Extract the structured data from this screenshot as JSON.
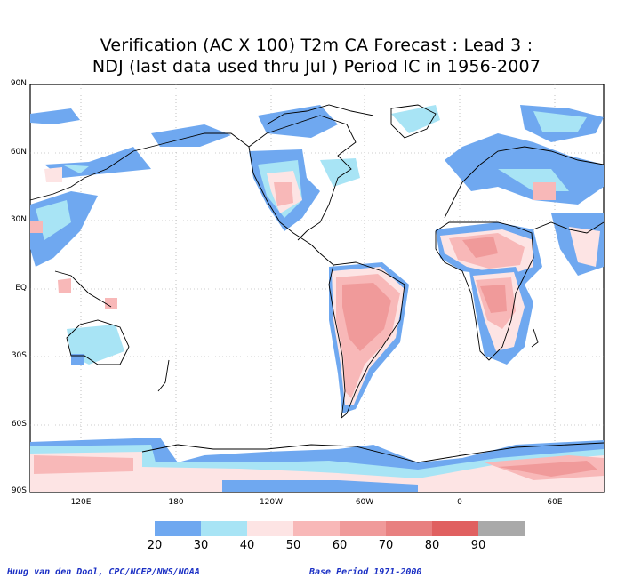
{
  "title": {
    "line1": "Verification (AC X 100) T2m CA Forecast : Lead 3 :",
    "line2": "NDJ (last data used thru Jul ) Period IC in 1956-2007"
  },
  "axes": {
    "lat_labels": [
      "90N",
      "60N",
      "30N",
      "EQ",
      "30S",
      "60S",
      "90S"
    ],
    "lon_labels": [
      "120E",
      "180",
      "120W",
      "60W",
      "0",
      "60E"
    ]
  },
  "colorbar": {
    "colors": [
      "#6fa8f0",
      "#a8e4f5",
      "#fde4e4",
      "#f8b8b8",
      "#f09a9a",
      "#e88080",
      "#e06060",
      "#a9a9a9"
    ],
    "labels": [
      "20",
      "30",
      "40",
      "50",
      "60",
      "70",
      "80",
      "90"
    ]
  },
  "footer": {
    "credit": "Huug van den Dool, CPC/NCEP/NWS/NOAA",
    "base_period": "Base Period 1971-2000"
  }
}
